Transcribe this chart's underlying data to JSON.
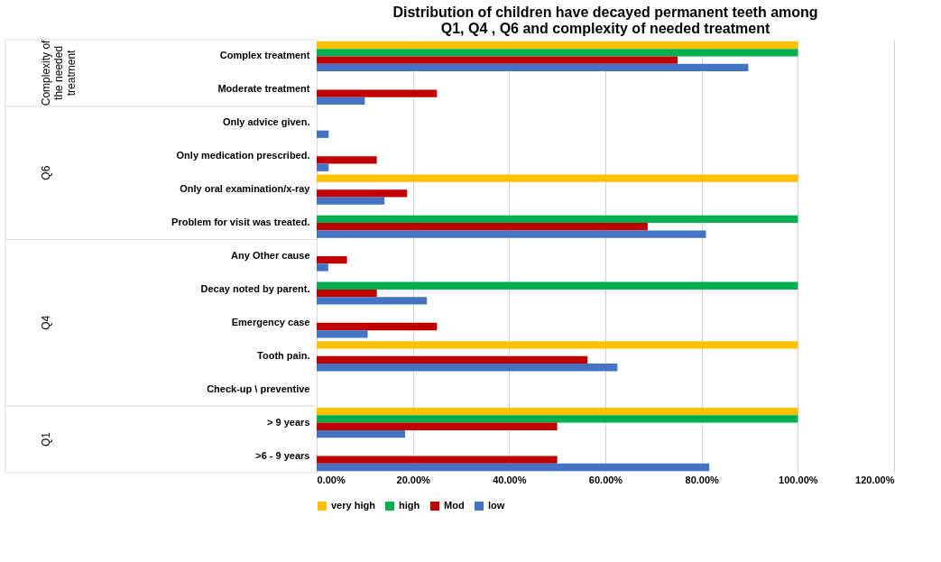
{
  "chart_data": {
    "type": "bar",
    "orientation": "horizontal",
    "title": "Distribution of children have decayed permanent teeth among\nQ1, Q4 , Q6 and complexity of needed treatment",
    "categories": [
      "Complex treatment",
      "Moderate treatment",
      "Only advice given.",
      "Only medication prescribed.",
      "Only oral examination/x-ray",
      "Problem for visit was treated.",
      "Any Other cause",
      "Decay noted by parent.",
      "Emergency case",
      "Tooth pain.",
      "Check-up \\ preventive",
      "> 9 years",
      ">6 - 9 years"
    ],
    "series": [
      {
        "name": "very high",
        "color": "#ffc000",
        "values": [
          100,
          0,
          0,
          0,
          100,
          0,
          0,
          0,
          0,
          100,
          0,
          100,
          0
        ]
      },
      {
        "name": "high",
        "color": "#00b050",
        "values": [
          100,
          0,
          0,
          0,
          0,
          100,
          0,
          100,
          0,
          0,
          0,
          100,
          0
        ]
      },
      {
        "name": "Mod",
        "color": "#c00000",
        "values": [
          75,
          25,
          0,
          12.5,
          18.8,
          68.8,
          6.3,
          12.5,
          25,
          56.3,
          0,
          50,
          50
        ]
      },
      {
        "name": "low",
        "color": "#4472c4",
        "values": [
          89.7,
          10,
          2.5,
          2.5,
          14.1,
          80.9,
          2.4,
          22.9,
          10.6,
          62.5,
          0,
          18.4,
          81.6
        ]
      }
    ],
    "xlim": [
      0,
      120
    ],
    "xticks": [
      {
        "value": 0,
        "label": "0.00%"
      },
      {
        "value": 20,
        "label": "20.00%"
      },
      {
        "value": 40,
        "label": "40.00%"
      },
      {
        "value": 60,
        "label": "60.00%"
      },
      {
        "value": 80,
        "label": "80.00%"
      },
      {
        "value": 100,
        "label": "100.00%"
      },
      {
        "value": 120,
        "label": "120.00%"
      }
    ],
    "grid": "x",
    "legend": "bottom",
    "annotations": [
      "Complexity of\nthe needed\ntreatment",
      "Q6",
      "Q4",
      "Q1"
    ]
  }
}
